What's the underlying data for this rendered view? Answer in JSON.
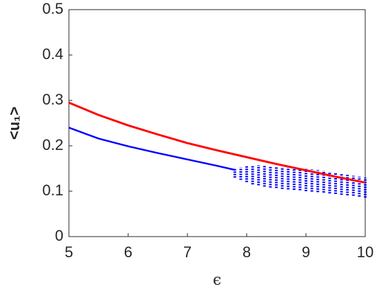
{
  "chart_data": {
    "type": "line",
    "xlabel": "ϵ",
    "ylabel": "<u₁>",
    "xlim": [
      5,
      10
    ],
    "ylim": [
      0,
      0.5
    ],
    "xticks": [
      5,
      6,
      7,
      8,
      9,
      10
    ],
    "yticks": [
      0,
      0.1,
      0.2,
      0.3,
      0.4,
      0.5
    ],
    "series": [
      {
        "color": "#ff0000",
        "x": [
          5,
          5.5,
          6,
          6.5,
          7,
          7.5,
          8,
          8.5,
          9,
          9.5,
          10
        ],
        "values": [
          0.295,
          0.268,
          0.245,
          0.225,
          0.206,
          0.19,
          0.175,
          0.16,
          0.146,
          0.132,
          0.119
        ]
      },
      {
        "color": "#0000ff",
        "x": [
          5,
          5.5,
          6,
          6.5,
          7,
          7.5,
          7.8
        ],
        "values": [
          0.24,
          0.216,
          0.199,
          0.184,
          0.17,
          0.156,
          0.147
        ]
      }
    ],
    "ranges": {
      "color": "#0000ff",
      "x": [
        7.8,
        7.9,
        8,
        8.1,
        8.2,
        8.3,
        8.4,
        8.5,
        8.6,
        8.7,
        8.8,
        8.9,
        9,
        9.1,
        9.2,
        9.3,
        9.4,
        9.5,
        9.6,
        9.7,
        9.8,
        9.9,
        10
      ],
      "low": [
        0.13,
        0.125,
        0.12,
        0.115,
        0.113,
        0.11,
        0.108,
        0.107,
        0.105,
        0.104,
        0.103,
        0.102,
        0.1,
        0.099,
        0.098,
        0.097,
        0.095,
        0.094,
        0.092,
        0.091,
        0.09,
        0.088,
        0.086
      ],
      "high": [
        0.15,
        0.152,
        0.155,
        0.156,
        0.157,
        0.156,
        0.155,
        0.154,
        0.153,
        0.152,
        0.151,
        0.15,
        0.149,
        0.148,
        0.147,
        0.145,
        0.143,
        0.14,
        0.138,
        0.136,
        0.134,
        0.132,
        0.13
      ]
    }
  }
}
